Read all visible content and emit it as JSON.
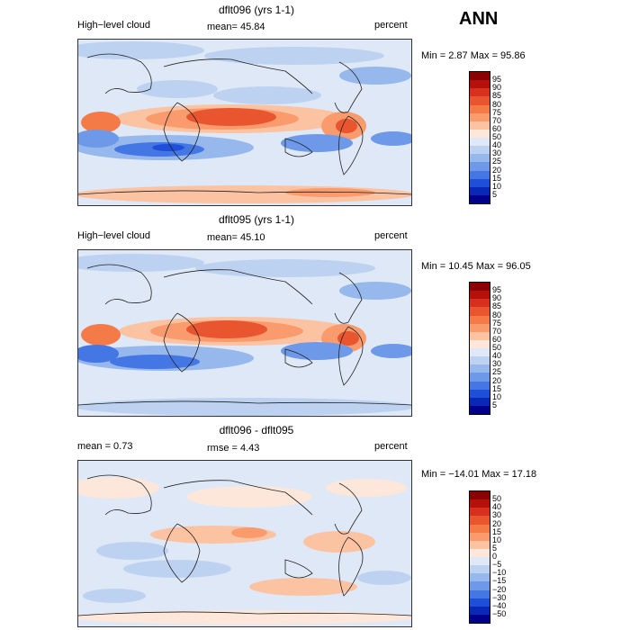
{
  "page_label": "ANN",
  "panels": [
    {
      "title": "dflt096 (yrs 1-1)",
      "left_label": "High−level cloud",
      "center_label": "mean=   45.84",
      "right_label": "percent",
      "minmax": "Min =    2.87 Max =   95.86",
      "colorbar": {
        "labels": [
          "95",
          "90",
          "85",
          "80",
          "75",
          "70",
          "60",
          "50",
          "40",
          "30",
          "25",
          "20",
          "15",
          "10",
          "5"
        ],
        "colors": [
          "#8b0000",
          "#b5100a",
          "#d7301f",
          "#e8552f",
          "#f47a48",
          "#f99b6c",
          "#fcc3a3",
          "#fde7da",
          "#dfe8f6",
          "#bcd2f0",
          "#96b8ec",
          "#6d99e8",
          "#4577e4",
          "#1f4fd8",
          "#0a28b8",
          "#00008b"
        ]
      }
    },
    {
      "title": "dflt095 (yrs 1-1)",
      "left_label": "High−level cloud",
      "center_label": "mean=   45.10",
      "right_label": "percent",
      "minmax": "Min =   10.45 Max =   96.05",
      "colorbar": {
        "labels": [
          "95",
          "90",
          "85",
          "80",
          "75",
          "70",
          "60",
          "50",
          "40",
          "30",
          "25",
          "20",
          "15",
          "10",
          "5"
        ],
        "colors": [
          "#8b0000",
          "#b5100a",
          "#d7301f",
          "#e8552f",
          "#f47a48",
          "#f99b6c",
          "#fcc3a3",
          "#fde7da",
          "#dfe8f6",
          "#bcd2f0",
          "#96b8ec",
          "#6d99e8",
          "#4577e4",
          "#1f4fd8",
          "#0a28b8",
          "#00008b"
        ]
      }
    },
    {
      "title": "dflt096 - dflt095",
      "left_label": "mean =    0.73",
      "center_label": "rmse =    4.43",
      "right_label": "percent",
      "minmax": "Min = −14.01 Max =   17.18",
      "colorbar": {
        "labels": [
          "50",
          "40",
          "30",
          "20",
          "15",
          "10",
          "5",
          "0",
          "−5",
          "−10",
          "−15",
          "−20",
          "−30",
          "−40",
          "−50"
        ],
        "colors": [
          "#8b0000",
          "#b5100a",
          "#d7301f",
          "#e8552f",
          "#f47a48",
          "#f99b6c",
          "#fcc3a3",
          "#fde7da",
          "#dfe8f6",
          "#bcd2f0",
          "#96b8ec",
          "#6d99e8",
          "#4577e4",
          "#1f4fd8",
          "#0a28b8",
          "#00008b"
        ]
      }
    }
  ],
  "chart_data": [
    {
      "type": "heatmap",
      "title": "dflt096 (yrs 1-1)",
      "variable": "High−level cloud",
      "units": "percent",
      "mean": 45.84,
      "min": 2.87,
      "max": 95.86,
      "levels": [
        5,
        10,
        15,
        20,
        25,
        30,
        40,
        50,
        60,
        70,
        75,
        80,
        85,
        90,
        95
      ]
    },
    {
      "type": "heatmap",
      "title": "dflt095 (yrs 1-1)",
      "variable": "High−level cloud",
      "units": "percent",
      "mean": 45.1,
      "min": 10.45,
      "max": 96.05,
      "levels": [
        5,
        10,
        15,
        20,
        25,
        30,
        40,
        50,
        60,
        70,
        75,
        80,
        85,
        90,
        95
      ]
    },
    {
      "type": "heatmap",
      "title": "dflt096 - dflt095",
      "units": "percent",
      "mean": 0.73,
      "rmse": 4.43,
      "min": -14.01,
      "max": 17.18,
      "levels": [
        -50,
        -40,
        -30,
        -20,
        -15,
        -10,
        -5,
        0,
        5,
        10,
        15,
        20,
        30,
        40,
        50
      ]
    }
  ]
}
